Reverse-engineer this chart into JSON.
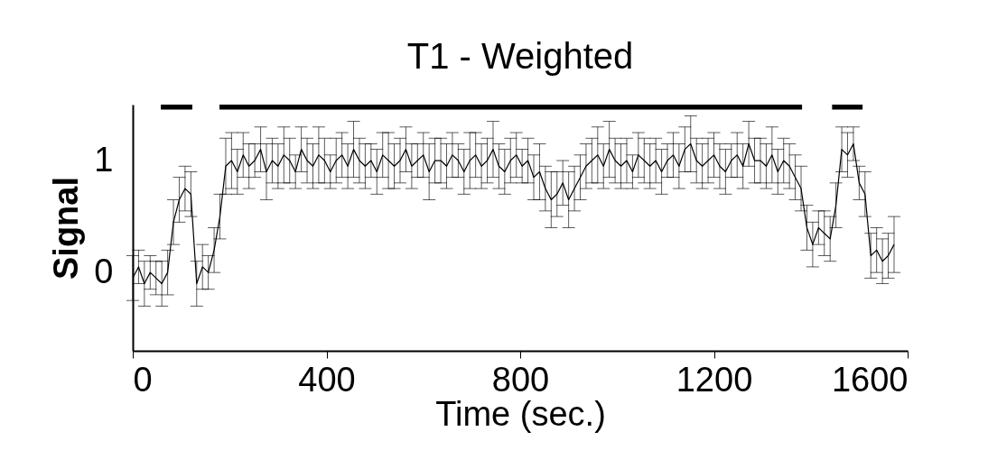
{
  "chart_data": {
    "type": "line",
    "title": "T1 - Weighted",
    "xlabel": "Time (sec.)",
    "ylabel": "Signal",
    "xlim": [
      0,
      1600
    ],
    "xticks": [
      0,
      400,
      800,
      1200,
      1600
    ],
    "ylim": [
      -0.7,
      1.5
    ],
    "yticks": [
      0,
      1
    ],
    "grid": false,
    "marker": "none",
    "line_style": "solid",
    "series": [
      {
        "type": "line",
        "color": "#000000",
        "x": [
          58,
          123
        ],
        "values": [
          1.48,
          1.48
        ]
      },
      {
        "type": "line",
        "color": "#000000",
        "x": [
          179,
          1382
        ],
        "values": [
          1.48,
          1.48
        ]
      },
      {
        "type": "line",
        "color": "#000000",
        "x": [
          1444,
          1507
        ],
        "values": [
          1.48,
          1.48
        ]
      },
      {
        "color": "#000000",
        "x": [
          0,
          12,
          24,
          36,
          48,
          60,
          72,
          84,
          96,
          108,
          120,
          132,
          144,
          156,
          168,
          180,
          192,
          204,
          216,
          228,
          240,
          252,
          264,
          276,
          288,
          300,
          312,
          324,
          336,
          348,
          360,
          372,
          384,
          396,
          408,
          420,
          432,
          444,
          456,
          468,
          480,
          492,
          504,
          516,
          528,
          540,
          552,
          564,
          576,
          588,
          600,
          612,
          624,
          636,
          648,
          660,
          672,
          684,
          696,
          708,
          720,
          732,
          744,
          756,
          768,
          780,
          792,
          804,
          816,
          828,
          840,
          852,
          864,
          876,
          888,
          900,
          912,
          924,
          936,
          948,
          960,
          972,
          984,
          996,
          1008,
          1020,
          1032,
          1044,
          1056,
          1068,
          1080,
          1092,
          1104,
          1116,
          1128,
          1140,
          1152,
          1164,
          1176,
          1188,
          1200,
          1212,
          1224,
          1236,
          1248,
          1260,
          1272,
          1284,
          1296,
          1308,
          1320,
          1332,
          1344,
          1356,
          1368,
          1380,
          1392,
          1404,
          1416,
          1428,
          1440,
          1452,
          1464,
          1476,
          1488,
          1500,
          1512,
          1524,
          1536,
          1548,
          1560,
          1572
        ],
        "values": [
          -0.05,
          0.05,
          -0.1,
          0.0,
          -0.05,
          -0.1,
          0.0,
          0.45,
          0.65,
          0.75,
          0.7,
          -0.1,
          0.05,
          0.0,
          0.2,
          0.5,
          0.95,
          1.0,
          0.9,
          1.05,
          0.95,
          1.0,
          1.1,
          0.9,
          1.0,
          0.95,
          1.05,
          1.0,
          0.9,
          1.1,
          1.0,
          0.95,
          1.05,
          1.0,
          0.9,
          1.0,
          1.05,
          0.95,
          1.1,
          1.0,
          0.95,
          1.0,
          0.9,
          1.05,
          1.0,
          0.95,
          1.0,
          1.1,
          0.95,
          1.0,
          1.05,
          0.9,
          1.0,
          1.0,
          0.95,
          1.05,
          1.0,
          0.9,
          1.0,
          1.05,
          0.95,
          1.0,
          1.1,
          0.95,
          0.9,
          1.0,
          1.05,
          0.95,
          1.0,
          0.85,
          0.9,
          0.75,
          0.65,
          0.7,
          0.8,
          0.65,
          0.75,
          0.85,
          0.95,
          1.0,
          1.05,
          0.95,
          1.1,
          1.0,
          0.95,
          1.0,
          0.9,
          1.05,
          1.0,
          0.95,
          1.0,
          0.9,
          1.0,
          1.05,
          0.95,
          1.1,
          1.15,
          1.0,
          0.95,
          1.0,
          1.05,
          0.95,
          0.9,
          1.0,
          1.05,
          0.95,
          1.15,
          1.0,
          1.0,
          0.95,
          1.05,
          0.9,
          1.0,
          0.95,
          0.85,
          0.75,
          0.4,
          0.25,
          0.4,
          0.35,
          0.3,
          0.6,
          1.1,
          1.05,
          1.15,
          0.8,
          0.7,
          0.15,
          0.2,
          0.1,
          0.15,
          0.25
        ],
        "errors": [
          0.2,
          0.15,
          0.2,
          0.15,
          0.15,
          0.2,
          0.2,
          0.2,
          0.2,
          0.2,
          0.2,
          0.2,
          0.2,
          0.15,
          0.2,
          0.2,
          0.25,
          0.25,
          0.2,
          0.2,
          0.2,
          0.15,
          0.2,
          0.25,
          0.2,
          0.2,
          0.25,
          0.2,
          0.15,
          0.2,
          0.2,
          0.2,
          0.25,
          0.2,
          0.15,
          0.2,
          0.2,
          0.2,
          0.25,
          0.2,
          0.2,
          0.15,
          0.2,
          0.2,
          0.25,
          0.2,
          0.2,
          0.2,
          0.2,
          0.15,
          0.2,
          0.25,
          0.2,
          0.2,
          0.2,
          0.2,
          0.15,
          0.2,
          0.25,
          0.2,
          0.2,
          0.2,
          0.25,
          0.2,
          0.2,
          0.2,
          0.2,
          0.15,
          0.2,
          0.2,
          0.25,
          0.2,
          0.25,
          0.2,
          0.2,
          0.25,
          0.2,
          0.2,
          0.2,
          0.2,
          0.25,
          0.2,
          0.25,
          0.2,
          0.2,
          0.2,
          0.15,
          0.2,
          0.2,
          0.2,
          0.2,
          0.2,
          0.15,
          0.2,
          0.2,
          0.2,
          0.25,
          0.2,
          0.2,
          0.2,
          0.2,
          0.2,
          0.2,
          0.15,
          0.2,
          0.2,
          0.2,
          0.2,
          0.2,
          0.2,
          0.25,
          0.2,
          0.2,
          0.2,
          0.2,
          0.2,
          0.2,
          0.2,
          0.15,
          0.2,
          0.2,
          0.2,
          0.2,
          0.2,
          0.15,
          0.15,
          0.2,
          0.2,
          0.2,
          0.2,
          0.2,
          0.25
        ]
      }
    ]
  }
}
